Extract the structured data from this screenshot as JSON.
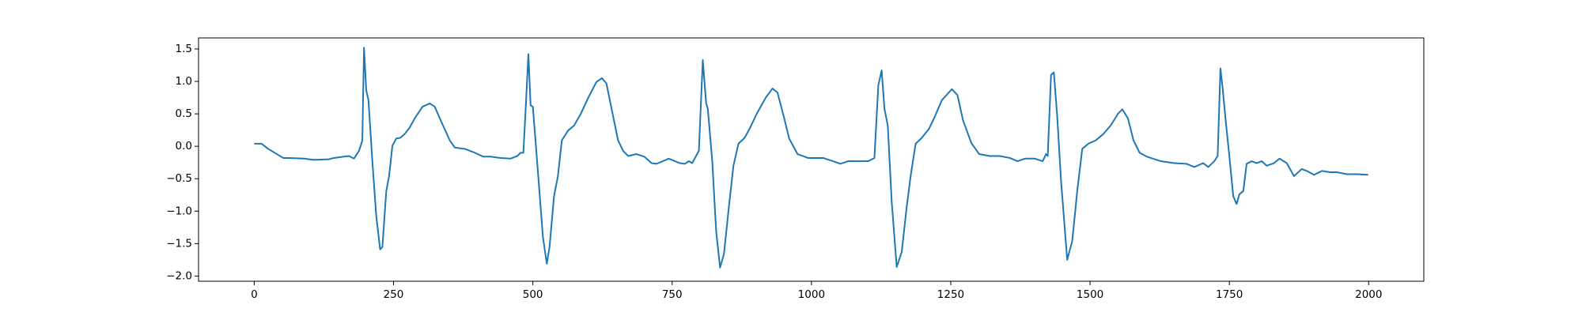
{
  "chart_data": {
    "type": "line",
    "x": [
      0,
      13,
      25,
      52,
      61,
      89,
      107,
      134,
      143,
      161,
      170,
      179,
      188,
      194,
      197,
      201,
      205,
      212,
      219,
      226,
      230,
      237,
      242,
      248,
      255,
      262,
      270,
      279,
      288,
      302,
      315,
      324,
      333,
      351,
      360,
      378,
      396,
      411,
      424,
      442,
      460,
      472,
      478,
      483,
      487,
      492,
      496,
      500,
      509,
      518,
      525,
      530,
      538,
      545,
      552,
      563,
      574,
      586,
      599,
      614,
      624,
      632,
      642,
      653,
      662,
      671,
      686,
      700,
      713,
      722,
      733,
      744,
      755,
      764,
      773,
      780,
      786,
      798,
      805,
      811,
      814,
      822,
      829,
      836,
      843,
      851,
      860,
      869,
      880,
      889,
      903,
      918,
      930,
      939,
      950,
      960,
      975,
      994,
      1021,
      1039,
      1052,
      1066,
      1084,
      1102,
      1113,
      1120,
      1126,
      1131,
      1137,
      1144,
      1153,
      1162,
      1171,
      1178,
      1187,
      1198,
      1211,
      1220,
      1234,
      1252,
      1262,
      1272,
      1287,
      1301,
      1320,
      1338,
      1356,
      1370,
      1383,
      1401,
      1415,
      1421,
      1424,
      1430,
      1435,
      1441,
      1448,
      1459,
      1468,
      1477,
      1486,
      1497,
      1510,
      1524,
      1537,
      1550,
      1558,
      1568,
      1578,
      1589,
      1602,
      1627,
      1651,
      1673,
      1687,
      1703,
      1712,
      1723,
      1729,
      1734,
      1738,
      1743,
      1749,
      1757,
      1763,
      1768,
      1775,
      1781,
      1790,
      1799,
      1808,
      1817,
      1830,
      1840,
      1853,
      1866,
      1880,
      1889,
      1902,
      1916,
      1931,
      1943,
      1961,
      1979,
      1999
    ],
    "values": [
      0.04,
      0.04,
      -0.04,
      -0.18,
      -0.18,
      -0.19,
      -0.21,
      -0.2,
      -0.18,
      -0.16,
      -0.15,
      -0.19,
      -0.07,
      0.09,
      1.52,
      0.86,
      0.71,
      -0.23,
      -1.08,
      -1.59,
      -1.55,
      -0.69,
      -0.46,
      0.01,
      0.12,
      0.13,
      0.19,
      0.29,
      0.43,
      0.61,
      0.66,
      0.61,
      0.43,
      0.09,
      -0.02,
      -0.04,
      -0.1,
      -0.16,
      -0.16,
      -0.18,
      -0.19,
      -0.15,
      -0.1,
      -0.1,
      0.55,
      1.42,
      0.63,
      0.61,
      -0.38,
      -1.39,
      -1.81,
      -1.55,
      -0.77,
      -0.46,
      0.09,
      0.24,
      0.32,
      0.5,
      0.74,
      0.99,
      1.05,
      0.97,
      0.55,
      0.09,
      -0.07,
      -0.15,
      -0.12,
      -0.16,
      -0.26,
      -0.27,
      -0.23,
      -0.19,
      -0.23,
      -0.26,
      -0.27,
      -0.23,
      -0.26,
      -0.07,
      1.33,
      0.66,
      0.58,
      -0.23,
      -1.31,
      -1.87,
      -1.66,
      -1.0,
      -0.3,
      0.04,
      0.13,
      0.27,
      0.52,
      0.75,
      0.89,
      0.83,
      0.47,
      0.12,
      -0.12,
      -0.18,
      -0.18,
      -0.23,
      -0.27,
      -0.23,
      -0.23,
      -0.23,
      -0.18,
      0.94,
      1.17,
      0.58,
      0.32,
      -0.85,
      -1.86,
      -1.63,
      -0.93,
      -0.46,
      0.04,
      0.13,
      0.27,
      0.43,
      0.71,
      0.88,
      0.79,
      0.4,
      0.05,
      -0.12,
      -0.15,
      -0.15,
      -0.18,
      -0.23,
      -0.19,
      -0.19,
      -0.23,
      -0.12,
      -0.15,
      1.1,
      1.14,
      0.47,
      -0.54,
      -1.75,
      -1.46,
      -0.69,
      -0.04,
      0.04,
      0.09,
      0.19,
      0.32,
      0.5,
      0.57,
      0.43,
      0.09,
      -0.1,
      -0.16,
      -0.23,
      -0.26,
      -0.27,
      -0.32,
      -0.26,
      -0.32,
      -0.23,
      -0.15,
      1.2,
      0.89,
      0.43,
      -0.07,
      -0.77,
      -0.89,
      -0.74,
      -0.69,
      -0.27,
      -0.23,
      -0.26,
      -0.23,
      -0.3,
      -0.26,
      -0.19,
      -0.26,
      -0.46,
      -0.35,
      -0.38,
      -0.44,
      -0.38,
      -0.4,
      -0.4,
      -0.43,
      -0.43,
      -0.44
    ],
    "color": "#1f77b4",
    "xlim": [
      -99.95,
      2098.95
    ],
    "ylim": [
      -2.08,
      1.67
    ],
    "xticks": [
      0,
      250,
      500,
      750,
      1000,
      1250,
      1500,
      1750,
      2000
    ],
    "yticks": [
      {
        "value": -2.0,
        "label": "−2.0"
      },
      {
        "value": -1.5,
        "label": "−1.5"
      },
      {
        "value": -1.0,
        "label": "−1.0"
      },
      {
        "value": -0.5,
        "label": "−0.5"
      },
      {
        "value": 0.0,
        "label": "0.0"
      },
      0.5,
      {
        "value": 1.0,
        "label": "1.0"
      },
      1.5
    ]
  }
}
